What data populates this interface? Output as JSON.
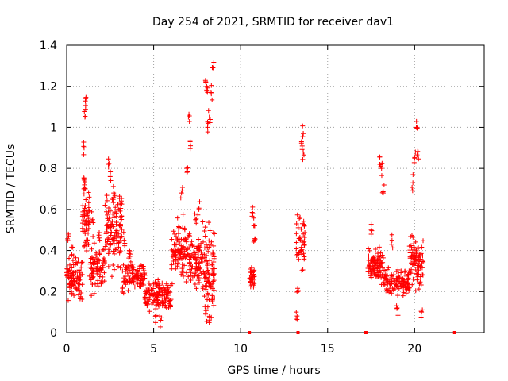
{
  "chart_data": {
    "type": "scatter",
    "title": "Day 254 of 2021, SRMTID for receiver dav1",
    "xlabel": "GPS time / hours",
    "ylabel": "SRMTID / TECUs",
    "xlim": [
      0,
      24
    ],
    "ylim": [
      0,
      1.4
    ],
    "x_ticks": [
      0,
      5,
      10,
      15,
      20
    ],
    "x_tick_labels": [
      "0",
      "5",
      "10",
      "15",
      "20"
    ],
    "y_ticks": [
      0,
      0.2,
      0.4,
      0.6,
      0.8,
      1.0,
      1.2,
      1.4
    ],
    "y_tick_labels": [
      "0",
      "0.2",
      "0.4",
      "0.6",
      "0.8",
      "1",
      "1.2",
      "1.4"
    ],
    "grid": true,
    "marker": "plus",
    "color": "#ff0000",
    "zero_markers": {
      "marker": "square",
      "x": [
        10.5,
        13.3,
        17.2,
        22.3
      ],
      "y": [
        0,
        0,
        0,
        0
      ]
    },
    "series": [
      {
        "name": "SRMTID",
        "clusters": [
          {
            "x_range": [
              0.0,
              0.9
            ],
            "y_base": 0.26,
            "y_spread": 0.1,
            "count": 90,
            "peaks": [
              [
                0.1,
                0.48
              ],
              [
                0.3,
                0.38
              ],
              [
                0.5,
                0.33
              ]
            ]
          },
          {
            "x_range": [
              0.9,
              1.3
            ],
            "y_base": 0.55,
            "y_spread": 0.15,
            "count": 60,
            "peaks": [
              [
                1.0,
                0.9
              ],
              [
                1.05,
                1.05
              ],
              [
                1.1,
                1.14
              ],
              [
                1.0,
                0.75
              ]
            ]
          },
          {
            "x_range": [
              1.3,
              2.2
            ],
            "y_base": 0.32,
            "y_spread": 0.12,
            "count": 80,
            "peaks": [
              [
                1.5,
                0.55
              ],
              [
                1.9,
                0.45
              ]
            ]
          },
          {
            "x_range": [
              2.2,
              3.2
            ],
            "y_base": 0.5,
            "y_spread": 0.18,
            "count": 110,
            "peaks": [
              [
                2.4,
                0.82
              ],
              [
                2.5,
                0.76
              ],
              [
                2.7,
                0.68
              ],
              [
                3.1,
                0.63
              ]
            ]
          },
          {
            "x_range": [
              3.2,
              4.5
            ],
            "y_base": 0.28,
            "y_spread": 0.08,
            "count": 100,
            "peaks": [
              [
                3.3,
                0.45
              ],
              [
                3.6,
                0.4
              ]
            ]
          },
          {
            "x_range": [
              4.5,
              6.0
            ],
            "y_base": 0.18,
            "y_spread": 0.07,
            "count": 130,
            "peaks": [
              [
                5.1,
                0.08
              ],
              [
                5.4,
                0.06
              ]
            ]
          },
          {
            "x_range": [
              6.0,
              7.1
            ],
            "y_base": 0.38,
            "y_spread": 0.15,
            "count": 110,
            "peaks": [
              [
                6.6,
                0.68
              ],
              [
                6.9,
                0.8
              ],
              [
                7.0,
                1.05
              ],
              [
                7.1,
                0.93
              ]
            ]
          },
          {
            "x_range": [
              7.1,
              7.8
            ],
            "y_base": 0.35,
            "y_spread": 0.12,
            "count": 70,
            "peaks": [
              [
                7.4,
                0.55
              ],
              [
                7.6,
                0.6
              ]
            ]
          },
          {
            "x_range": [
              7.8,
              8.5
            ],
            "y_base": 0.3,
            "y_spread": 0.2,
            "count": 100,
            "peaks": [
              [
                8.0,
                1.22
              ],
              [
                8.05,
                1.2
              ],
              [
                8.3,
                1.17
              ],
              [
                8.4,
                1.29
              ],
              [
                8.2,
                1.05
              ],
              [
                8.1,
                1.0
              ],
              [
                8.0,
                0.09
              ],
              [
                8.2,
                0.08
              ]
            ]
          },
          {
            "x_range": [
              10.5,
              10.8
            ],
            "y_base": 0.28,
            "y_spread": 0.06,
            "count": 30,
            "peaks": [
              [
                10.7,
                0.58
              ],
              [
                10.8,
                0.52
              ],
              [
                10.8,
                0.45
              ]
            ]
          },
          {
            "x_range": [
              13.2,
              13.7
            ],
            "y_base": 0.45,
            "y_spread": 0.12,
            "count": 45,
            "peaks": [
              [
                13.5,
                0.93
              ],
              [
                13.6,
                0.97
              ],
              [
                13.6,
                0.88
              ],
              [
                13.2,
                0.1
              ],
              [
                13.3,
                0.2
              ]
            ]
          },
          {
            "x_range": [
              17.3,
              18.2
            ],
            "y_base": 0.33,
            "y_spread": 0.08,
            "count": 90,
            "peaks": [
              [
                17.5,
                0.5
              ],
              [
                18.0,
                0.82
              ],
              [
                18.1,
                0.8
              ],
              [
                18.2,
                0.68
              ]
            ]
          },
          {
            "x_range": [
              18.2,
              19.7
            ],
            "y_base": 0.25,
            "y_spread": 0.07,
            "count": 120,
            "peaks": [
              [
                18.7,
                0.45
              ],
              [
                19.0,
                0.12
              ]
            ]
          },
          {
            "x_range": [
              19.7,
              20.5
            ],
            "y_base": 0.35,
            "y_spread": 0.12,
            "count": 90,
            "peaks": [
              [
                19.9,
                0.73
              ],
              [
                20.0,
                0.85
              ],
              [
                20.1,
                1.0
              ],
              [
                20.2,
                0.88
              ],
              [
                20.4,
                0.1
              ]
            ]
          }
        ]
      }
    ]
  }
}
